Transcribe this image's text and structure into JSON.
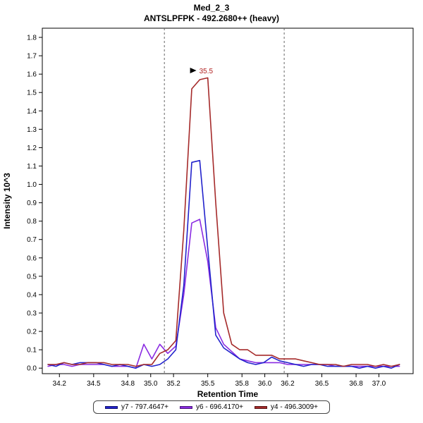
{
  "header": {
    "title": "Med_2_3",
    "subtitle": "ANTSLPFPK - 492.2680++ (heavy)"
  },
  "chart_data": {
    "type": "line",
    "title": "Med_2_3",
    "subtitle": "ANTSLPFPK - 492.2680++ (heavy)",
    "xlabel": "Retention Time",
    "ylabel": "Intensity 10^3",
    "xlim": [
      34.05,
      37.3
    ],
    "ylim": [
      -0.03,
      1.85
    ],
    "xticks": [
      34.2,
      34.5,
      34.8,
      35.0,
      35.2,
      35.5,
      35.8,
      36.0,
      36.2,
      36.5,
      36.8,
      37.0
    ],
    "yticks": [
      0.0,
      0.1,
      0.2,
      0.3,
      0.4,
      0.5,
      0.6,
      0.7,
      0.8,
      0.9,
      1.0,
      1.1,
      1.2,
      1.3,
      1.4,
      1.5,
      1.6,
      1.7,
      1.8
    ],
    "grid": false,
    "legend_position": "bottom",
    "integration_boundaries": [
      35.12,
      36.17
    ],
    "boundary_color": "#666666",
    "peak_annotation": {
      "label": "35.5",
      "x": 35.45,
      "y": 1.62,
      "color": "#b22222"
    },
    "x": [
      34.1,
      34.17,
      34.24,
      34.31,
      34.38,
      34.45,
      34.52,
      34.59,
      34.66,
      34.73,
      34.8,
      34.87,
      34.94,
      35.01,
      35.08,
      35.15,
      35.22,
      35.29,
      35.36,
      35.43,
      35.5,
      35.57,
      35.64,
      35.71,
      35.78,
      35.85,
      35.92,
      35.99,
      36.06,
      36.13,
      36.2,
      36.27,
      36.34,
      36.41,
      36.48,
      36.55,
      36.62,
      36.69,
      36.76,
      36.83,
      36.9,
      36.97,
      37.04,
      37.11,
      37.18
    ],
    "series": [
      {
        "name": "y7 - 797.4647+",
        "color": "#2222cc",
        "values": [
          0.02,
          0.01,
          0.03,
          0.02,
          0.03,
          0.03,
          0.03,
          0.02,
          0.01,
          0.02,
          0.01,
          0.0,
          0.02,
          0.01,
          0.02,
          0.05,
          0.1,
          0.45,
          1.12,
          1.13,
          0.65,
          0.18,
          0.11,
          0.08,
          0.05,
          0.03,
          0.02,
          0.03,
          0.06,
          0.04,
          0.03,
          0.02,
          0.01,
          0.02,
          0.02,
          0.01,
          0.01,
          0.01,
          0.01,
          0.0,
          0.01,
          0.0,
          0.01,
          0.0,
          0.02
        ]
      },
      {
        "name": "y6 - 696.4170+",
        "color": "#8a2be2",
        "values": [
          0.01,
          0.02,
          0.02,
          0.01,
          0.02,
          0.02,
          0.02,
          0.02,
          0.01,
          0.01,
          0.01,
          0.0,
          0.13,
          0.05,
          0.13,
          0.08,
          0.12,
          0.4,
          0.79,
          0.81,
          0.58,
          0.22,
          0.13,
          0.09,
          0.05,
          0.04,
          0.03,
          0.03,
          0.03,
          0.03,
          0.02,
          0.02,
          0.02,
          0.02,
          0.02,
          0.02,
          0.01,
          0.01,
          0.01,
          0.01,
          0.01,
          0.01,
          0.01,
          0.01,
          0.01
        ]
      },
      {
        "name": "y4 - 496.3009+",
        "color": "#a52a2a",
        "values": [
          0.02,
          0.02,
          0.03,
          0.02,
          0.02,
          0.03,
          0.03,
          0.03,
          0.02,
          0.02,
          0.02,
          0.01,
          0.02,
          0.02,
          0.08,
          0.1,
          0.15,
          0.75,
          1.52,
          1.57,
          1.58,
          0.9,
          0.3,
          0.13,
          0.1,
          0.1,
          0.07,
          0.07,
          0.07,
          0.05,
          0.05,
          0.05,
          0.04,
          0.03,
          0.02,
          0.02,
          0.02,
          0.01,
          0.02,
          0.02,
          0.02,
          0.01,
          0.02,
          0.01,
          0.02
        ]
      }
    ]
  }
}
